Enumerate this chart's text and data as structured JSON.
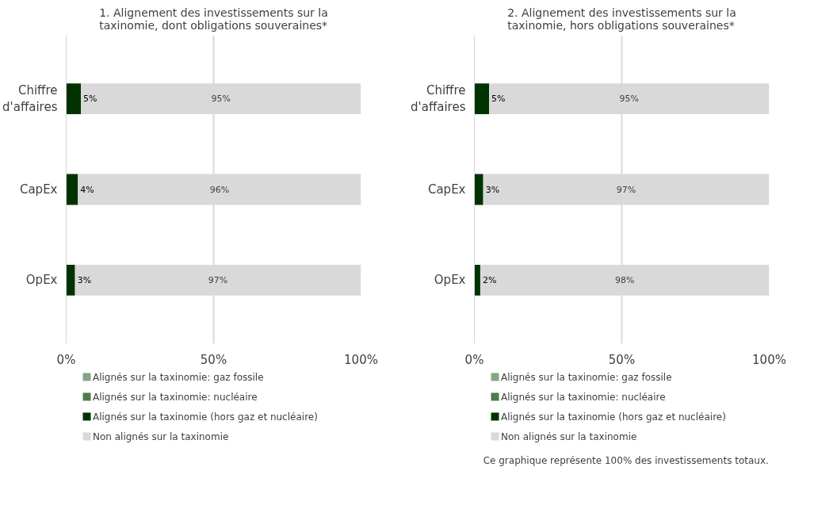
{
  "chart_data": [
    {
      "type": "bar",
      "orientation": "horizontal",
      "stacked": true,
      "title": "1. Alignement des investissements sur la taxinomie, dont obligations souveraines*",
      "categories": [
        "Chiffre d'affaires",
        "CapEx",
        "OpEx"
      ],
      "series": [
        {
          "name": "Alignés sur la taxinomie: gaz fossile",
          "color": "#84a584",
          "values": [
            0,
            0,
            0
          ],
          "value_labels": [
            null,
            null,
            null
          ]
        },
        {
          "name": "Alignés sur la taxinomie: nucléaire",
          "color": "#4e7b4e",
          "values": [
            0,
            0,
            0
          ],
          "value_labels": [
            null,
            null,
            null
          ]
        },
        {
          "name": "Alignés sur la taxinomie (hors gaz et nucléaire)",
          "color": "#003300",
          "values": [
            5,
            4,
            3
          ],
          "value_labels": [
            "5%",
            "4%",
            "3%"
          ]
        },
        {
          "name": "Non alignés sur la taxinomie",
          "color": "#d9d9d9",
          "values": [
            95,
            96,
            97
          ],
          "value_labels": [
            "95%",
            "96%",
            "97%"
          ]
        }
      ],
      "xlim": [
        0,
        100
      ],
      "xticks": [
        {
          "value": 0,
          "label": "0%"
        },
        {
          "value": 50,
          "label": "50%"
        },
        {
          "value": 100,
          "label": "100%"
        }
      ],
      "grid": "x",
      "legend": "bottom"
    },
    {
      "type": "bar",
      "orientation": "horizontal",
      "stacked": true,
      "title": "2. Alignement des investissements sur la taxinomie, hors obligations souveraines*",
      "categories": [
        "Chiffre d'affaires",
        "CapEx",
        "OpEx"
      ],
      "series": [
        {
          "name": "Alignés sur la taxinomie: gaz fossile",
          "color": "#84a584",
          "values": [
            0,
            0,
            0
          ],
          "value_labels": [
            null,
            null,
            null
          ]
        },
        {
          "name": "Alignés sur la taxinomie: nucléaire",
          "color": "#4e7b4e",
          "values": [
            0,
            0,
            0
          ],
          "value_labels": [
            null,
            null,
            null
          ]
        },
        {
          "name": "Alignés sur la taxinomie (hors gaz et nucléaire)",
          "color": "#003300",
          "values": [
            5,
            3,
            2
          ],
          "value_labels": [
            "5%",
            "3%",
            "2%"
          ]
        },
        {
          "name": "Non alignés sur la taxinomie",
          "color": "#d9d9d9",
          "values": [
            95,
            97,
            98
          ],
          "value_labels": [
            "95%",
            "97%",
            "98%"
          ]
        }
      ],
      "xlim": [
        0,
        100
      ],
      "xticks": [
        {
          "value": 0,
          "label": "0%"
        },
        {
          "value": 50,
          "label": "50%"
        },
        {
          "value": 100,
          "label": "100%"
        }
      ],
      "grid": "x",
      "legend": "bottom",
      "annotations": [
        "Ce graphique représente 100% des investissements totaux."
      ]
    }
  ]
}
